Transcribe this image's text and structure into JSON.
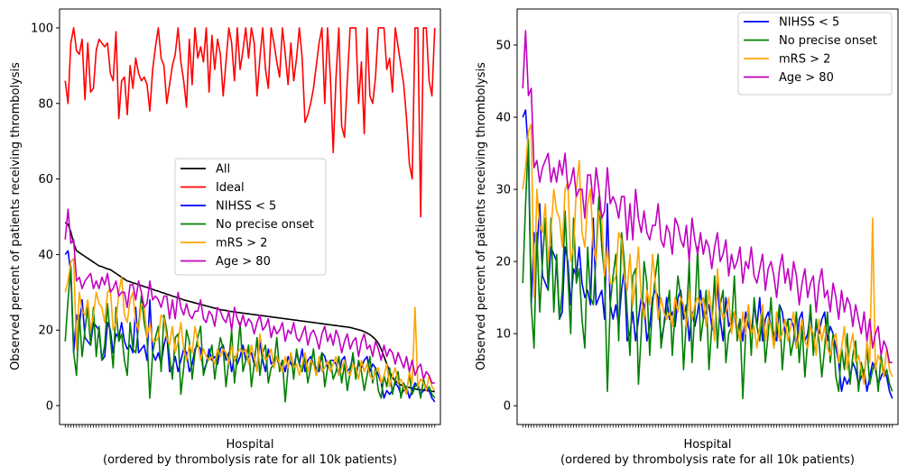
{
  "chart_data": [
    {
      "type": "line",
      "xlabel": "Hospital",
      "xlabel2": "(ordered by thrombolysis rate for all 10k patients)",
      "ylabel": "Observed percent of patients receiving thrombolysis",
      "ylim": [
        -5,
        105
      ],
      "yticks": [
        0,
        20,
        40,
        60,
        80,
        100
      ],
      "n_hospitals": 132,
      "legend_position": "center-right",
      "series": [
        {
          "name": "All",
          "color": "#000000",
          "values": [
            48.5,
            48,
            46,
            43,
            41,
            40.5,
            40,
            39.5,
            39,
            38.5,
            38,
            37.5,
            37,
            36.8,
            36.5,
            36.2,
            36,
            35.5,
            35,
            34.5,
            34,
            33.5,
            33,
            32.8,
            32.5,
            32.3,
            32,
            31.8,
            31.5,
            31.3,
            31,
            30.8,
            30.5,
            30.3,
            30,
            29.8,
            29.5,
            29.3,
            29,
            28.8,
            28.5,
            28.3,
            28,
            27.8,
            27.6,
            27.4,
            27.2,
            27,
            26.8,
            26.6,
            26.4,
            26.2,
            26,
            25.8,
            25.6,
            25.4,
            25.3,
            25.2,
            25,
            24.9,
            24.8,
            24.7,
            24.6,
            24.5,
            24.4,
            24.3,
            24.2,
            24.1,
            24,
            23.9,
            23.8,
            23.7,
            23.6,
            23.5,
            23.4,
            23.3,
            23.2,
            23.1,
            23,
            22.9,
            22.8,
            22.7,
            22.6,
            22.5,
            22.4,
            22.3,
            22.2,
            22.1,
            22,
            21.9,
            21.8,
            21.7,
            21.6,
            21.5,
            21.4,
            21.3,
            21.2,
            21.1,
            21,
            20.9,
            20.8,
            20.7,
            20.5,
            20.3,
            20.1,
            19.9,
            19.6,
            19.2,
            18.8,
            18.2,
            17.5,
            16.5,
            15,
            13,
            11,
            9,
            7.5,
            6.5,
            6,
            5.5,
            5.2,
            5,
            4.8,
            4.6,
            4.4,
            4.3,
            4.2,
            4.1,
            4,
            3.9,
            3.8,
            3.7
          ]
        },
        {
          "name": "Ideal",
          "color": "#ff0000",
          "values": [
            86,
            80,
            96,
            100,
            94,
            93,
            97,
            81,
            96,
            83,
            84,
            94,
            97,
            96,
            95,
            96,
            88,
            86,
            99,
            76,
            86,
            87,
            77,
            90,
            84,
            92,
            88,
            86,
            87,
            85,
            78,
            89,
            95,
            100,
            92,
            90,
            80,
            85,
            90,
            93,
            100,
            91,
            86,
            79,
            97,
            85,
            100,
            92,
            95,
            91,
            100,
            83,
            98,
            89,
            97,
            93,
            82,
            91,
            100,
            96,
            86,
            100,
            89,
            94,
            100,
            92,
            100,
            96,
            82,
            92,
            100,
            89,
            84,
            100,
            96,
            91,
            87,
            100,
            93,
            85,
            96,
            86,
            92,
            100,
            92,
            75,
            77,
            80,
            84,
            90,
            96,
            100,
            80,
            100,
            87,
            67,
            87,
            100,
            74,
            71,
            86,
            100,
            100,
            100,
            80,
            91,
            72,
            100,
            82,
            80,
            87,
            100,
            100,
            100,
            89,
            92,
            83,
            100,
            95,
            90,
            85,
            76,
            64,
            60,
            100,
            100,
            50,
            100,
            100,
            86,
            82,
            100
          ]
        },
        {
          "name": "NIHSS < 5",
          "color": "#0000ff",
          "values": [
            40,
            41,
            35,
            14,
            24,
            21,
            28,
            18,
            17,
            16,
            22,
            21,
            20,
            12,
            13,
            22,
            20,
            14,
            19,
            18,
            22,
            17,
            15,
            16,
            14,
            26,
            14,
            15,
            16,
            12,
            28,
            14,
            12,
            14,
            11,
            16,
            19,
            9,
            10,
            13,
            9,
            12,
            15,
            14,
            9,
            11,
            15,
            16,
            15,
            9,
            11,
            15,
            12,
            13,
            11,
            15,
            16,
            12,
            14,
            9,
            13,
            11,
            13,
            16,
            12,
            13,
            14,
            11,
            10,
            17,
            12,
            9,
            15,
            11,
            12,
            13,
            10,
            12,
            9,
            13,
            11,
            10,
            14,
            11,
            15,
            9,
            12,
            13,
            11,
            10,
            9,
            14,
            13,
            10,
            12,
            12,
            11,
            8,
            12,
            13,
            9,
            10,
            13,
            8,
            11,
            10,
            12,
            13,
            9,
            11,
            10,
            8,
            6,
            2,
            4,
            3,
            4,
            6,
            5,
            3,
            4,
            5,
            2,
            4,
            6,
            5,
            3,
            4,
            5,
            4,
            2,
            1
          ]
        },
        {
          "name": "No precise onset",
          "color": "#008000",
          "values": [
            17,
            28,
            37,
            14,
            8,
            24,
            13,
            20,
            26,
            16,
            26,
            13,
            21,
            12,
            16,
            27,
            18,
            10,
            26,
            17,
            19,
            12,
            8,
            22,
            15,
            14,
            21,
            29,
            22,
            18,
            2,
            14,
            18,
            21,
            9,
            24,
            20,
            13,
            7,
            18,
            19,
            3,
            10,
            20,
            17,
            7,
            14,
            18,
            21,
            8,
            11,
            13,
            16,
            7,
            13,
            18,
            15,
            5,
            12,
            20,
            6,
            13,
            22,
            9,
            12,
            16,
            5,
            11,
            18,
            8,
            14,
            16,
            6,
            10,
            11,
            18,
            9,
            12,
            1,
            10,
            14,
            7,
            15,
            11,
            9,
            13,
            6,
            10,
            15,
            8,
            11,
            14,
            5,
            10,
            12,
            7,
            9,
            13,
            6,
            11,
            4,
            9,
            14,
            7,
            12,
            9,
            4,
            8,
            13,
            6,
            10,
            4,
            2,
            8,
            5,
            10,
            3,
            7,
            9,
            2,
            6,
            4,
            8,
            3,
            5,
            6,
            2,
            7,
            4,
            5,
            3,
            2
          ]
        },
        {
          "name": "mRS > 2",
          "color": "#ffa500",
          "values": [
            30,
            33,
            38,
            39,
            15,
            30,
            25,
            24,
            28,
            20,
            24,
            30,
            27,
            26,
            22,
            30,
            31,
            20,
            22,
            30,
            34,
            24,
            22,
            28,
            30,
            22,
            20,
            27,
            26,
            18,
            22,
            17,
            17,
            18,
            24,
            23,
            18,
            16,
            21,
            14,
            17,
            22,
            15,
            12,
            16,
            14,
            21,
            17,
            12,
            15,
            13,
            12,
            13,
            11,
            15,
            13,
            15,
            14,
            11,
            16,
            12,
            14,
            15,
            14,
            15,
            11,
            16,
            13,
            9,
            19,
            14,
            12,
            13,
            15,
            10,
            13,
            11,
            9,
            13,
            10,
            14,
            10,
            11,
            8,
            11,
            14,
            9,
            12,
            11,
            8,
            13,
            9,
            10,
            12,
            9,
            11,
            13,
            8,
            10,
            12,
            9,
            8,
            11,
            10,
            7,
            12,
            9,
            11,
            8,
            7,
            9,
            10,
            6,
            8,
            11,
            5,
            8,
            10,
            6,
            7,
            5,
            3,
            9,
            6,
            26,
            5,
            7,
            6,
            4,
            8,
            5,
            4
          ]
        },
        {
          "name": "Age > 80",
          "color": "#c000c0",
          "values": [
            44,
            52,
            43,
            44,
            33,
            34,
            31,
            33,
            34,
            35,
            31,
            33,
            31,
            34,
            32,
            35,
            30,
            31,
            33,
            29,
            30,
            30,
            26,
            32,
            32,
            28,
            33,
            30,
            26,
            27,
            33,
            28,
            29,
            28,
            26,
            29,
            29,
            23,
            28,
            23,
            30,
            26,
            24,
            27,
            24,
            23,
            25,
            25,
            28,
            23,
            22,
            25,
            24,
            21,
            26,
            25,
            23,
            22,
            25,
            20,
            26,
            23,
            21,
            24,
            21,
            23,
            22,
            19,
            22,
            24,
            20,
            21,
            23,
            18,
            21,
            19,
            20,
            22,
            17,
            20,
            19,
            22,
            18,
            17,
            19,
            21,
            16,
            19,
            20,
            18,
            15,
            19,
            21,
            17,
            19,
            16,
            20,
            18,
            14,
            17,
            19,
            15,
            17,
            18,
            13,
            17,
            19,
            15,
            16,
            13,
            17,
            15,
            12,
            16,
            13,
            15,
            14,
            11,
            14,
            12,
            10,
            13,
            9,
            12,
            8,
            10,
            11,
            7,
            9,
            8,
            6,
            6
          ]
        }
      ]
    },
    {
      "type": "line",
      "xlabel": "Hospital",
      "xlabel2": "(ordered by thrombolysis rate for all 10k patients)",
      "ylabel": "Observed percent of patients receiving thrombolysis",
      "ylim": [
        -2.6,
        55
      ],
      "yticks": [
        0,
        10,
        20,
        30,
        40,
        50
      ],
      "n_hospitals": 132,
      "legend_position": "top-right",
      "series_ref": [
        "NIHSS < 5",
        "No precise onset",
        "mRS > 2",
        "Age > 80"
      ]
    }
  ]
}
